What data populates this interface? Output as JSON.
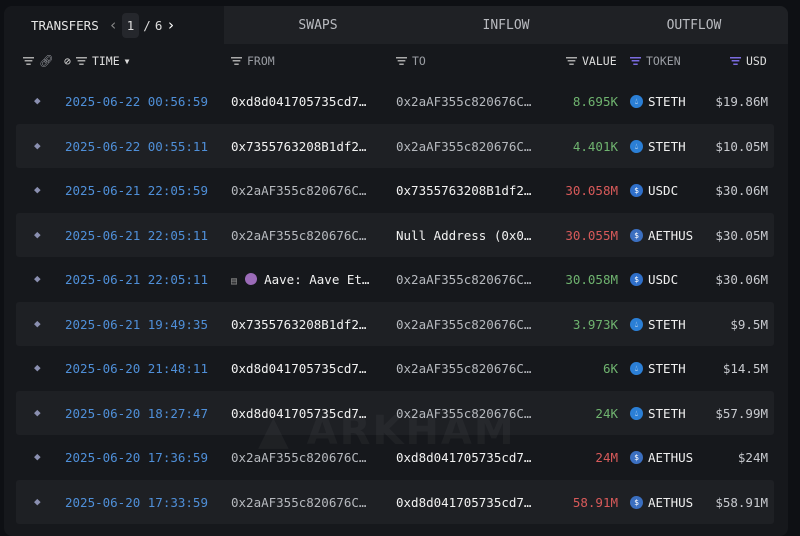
{
  "tabs": {
    "transfers": "TRANSFERS",
    "swaps": "SWAPS",
    "inflow": "INFLOW",
    "outflow": "OUTFLOW"
  },
  "pager": {
    "current": "1",
    "separator": "/",
    "total": "6"
  },
  "columns": {
    "time": "TIME",
    "from": "FROM",
    "to": "TO",
    "value": "VALUE",
    "token": "TOKEN",
    "usd": "USD"
  },
  "watermark": "ARKHAM",
  "colors": {
    "positive": "#6fb36f",
    "negative": "#d85a5a",
    "time": "#4f8fd8"
  },
  "rows": [
    {
      "time": "2025-06-22 00:56:59",
      "from": "0xd8d041705735cd7…",
      "from_style": "white",
      "to": "0x2aAF355c820676C…",
      "to_style": "gray",
      "value": "8.695K",
      "sign": "pos",
      "token": "STETH",
      "token_icon": "steth",
      "usd": "$19.86M"
    },
    {
      "time": "2025-06-22 00:55:11",
      "from": "0x7355763208B1df2…",
      "from_style": "white",
      "to": "0x2aAF355c820676C…",
      "to_style": "gray",
      "value": "4.401K",
      "sign": "pos",
      "token": "STETH",
      "token_icon": "steth",
      "usd": "$10.05M"
    },
    {
      "time": "2025-06-21 22:05:59",
      "from": "0x2aAF355c820676C…",
      "from_style": "gray",
      "to": "0x7355763208B1df2…",
      "to_style": "white",
      "value": "30.058M",
      "sign": "neg",
      "token": "USDC",
      "token_icon": "usdc",
      "usd": "$30.06M"
    },
    {
      "time": "2025-06-21 22:05:11",
      "from": "0x2aAF355c820676C…",
      "from_style": "gray",
      "to": "Null Address (0x0…",
      "to_style": "white",
      "value": "30.055M",
      "sign": "neg",
      "token": "AETHUS",
      "token_icon": "aethus",
      "usd": "$30.05M"
    },
    {
      "time": "2025-06-21 22:05:11",
      "from": "Aave: Aave Et…",
      "from_style": "white",
      "from_entity": true,
      "to": "0x2aAF355c820676C…",
      "to_style": "gray",
      "value": "30.058M",
      "sign": "pos",
      "token": "USDC",
      "token_icon": "usdc",
      "usd": "$30.06M"
    },
    {
      "time": "2025-06-21 19:49:35",
      "from": "0x7355763208B1df2…",
      "from_style": "white",
      "to": "0x2aAF355c820676C…",
      "to_style": "gray",
      "value": "3.973K",
      "sign": "pos",
      "token": "STETH",
      "token_icon": "steth",
      "usd": "$9.5M"
    },
    {
      "time": "2025-06-20 21:48:11",
      "from": "0xd8d041705735cd7…",
      "from_style": "white",
      "to": "0x2aAF355c820676C…",
      "to_style": "gray",
      "value": "6K",
      "sign": "pos",
      "token": "STETH",
      "token_icon": "steth",
      "usd": "$14.5M"
    },
    {
      "time": "2025-06-20 18:27:47",
      "from": "0xd8d041705735cd7…",
      "from_style": "white",
      "to": "0x2aAF355c820676C…",
      "to_style": "gray",
      "value": "24K",
      "sign": "pos",
      "token": "STETH",
      "token_icon": "steth",
      "usd": "$57.99M"
    },
    {
      "time": "2025-06-20 17:36:59",
      "from": "0x2aAF355c820676C…",
      "from_style": "gray",
      "to": "0xd8d041705735cd7…",
      "to_style": "white",
      "value": "24M",
      "sign": "neg",
      "token": "AETHUS",
      "token_icon": "aethus",
      "usd": "$24M"
    },
    {
      "time": "2025-06-20 17:33:59",
      "from": "0x2aAF355c820676C…",
      "from_style": "gray",
      "to": "0xd8d041705735cd7…",
      "to_style": "white",
      "value": "58.91M",
      "sign": "neg",
      "token": "AETHUS",
      "token_icon": "aethus",
      "usd": "$58.91M"
    }
  ]
}
